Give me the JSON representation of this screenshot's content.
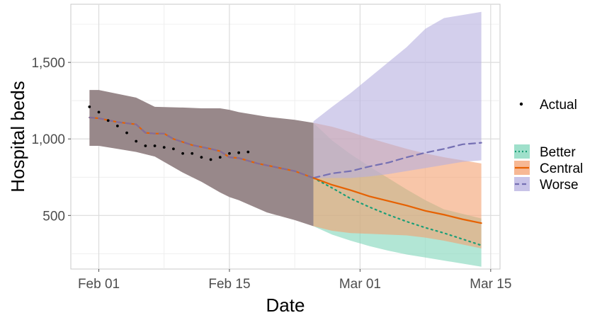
{
  "chart_data": {
    "type": "line",
    "xlabel": "Date",
    "ylabel": "Hospital beds",
    "xlim": [
      "2021-01-29",
      "2021-03-16"
    ],
    "ylim": [
      150,
      1880
    ],
    "x_ticks": [
      {
        "date": "2021-02-01",
        "label": "Feb 01"
      },
      {
        "date": "2021-02-15",
        "label": "Feb 15"
      },
      {
        "date": "2021-03-01",
        "label": "Mar 01"
      },
      {
        "date": "2021-03-15",
        "label": "Mar 15"
      }
    ],
    "y_ticks": [
      {
        "value": 500,
        "label": "500"
      },
      {
        "value": 1000,
        "label": "1,000"
      },
      {
        "value": 1500,
        "label": "1,500"
      }
    ],
    "grid": true,
    "legend_position": "right",
    "actual": {
      "name": "Actual",
      "color": "#000000",
      "x": [
        "2021-01-31",
        "2021-02-01",
        "2021-02-02",
        "2021-02-03",
        "2021-02-04",
        "2021-02-05",
        "2021-02-06",
        "2021-02-07",
        "2021-02-08",
        "2021-02-09",
        "2021-02-10",
        "2021-02-11",
        "2021-02-12",
        "2021-02-13",
        "2021-02-14",
        "2021-02-15",
        "2021-02-16",
        "2021-02-17"
      ],
      "y": [
        1210,
        1175,
        1120,
        1085,
        1040,
        985,
        955,
        955,
        945,
        935,
        905,
        905,
        880,
        865,
        880,
        905,
        910,
        915
      ]
    },
    "shared_band": {
      "x": [
        "2021-01-31",
        "2021-02-01",
        "2021-02-03",
        "2021-02-05",
        "2021-02-07",
        "2021-02-10",
        "2021-02-12",
        "2021-02-14",
        "2021-02-15",
        "2021-02-16",
        "2021-02-19",
        "2021-02-22",
        "2021-02-24"
      ],
      "lower": [
        955,
        955,
        935,
        915,
        885,
        780,
        720,
        650,
        620,
        600,
        520,
        470,
        430
      ],
      "upper": [
        1320,
        1320,
        1295,
        1270,
        1210,
        1205,
        1200,
        1200,
        1190,
        1175,
        1145,
        1125,
        1105
      ],
      "color": "#98888a"
    },
    "shared_line": {
      "x": [
        "2021-01-31",
        "2021-02-01",
        "2021-02-03",
        "2021-02-05",
        "2021-02-06",
        "2021-02-07",
        "2021-02-08",
        "2021-02-09",
        "2021-02-11",
        "2021-02-13",
        "2021-02-14",
        "2021-02-15",
        "2021-02-16",
        "2021-02-18",
        "2021-02-20",
        "2021-02-22",
        "2021-02-24"
      ],
      "y": [
        1140,
        1135,
        1110,
        1095,
        1040,
        1035,
        1035,
        1000,
        960,
        935,
        920,
        880,
        875,
        840,
        815,
        790,
        745
      ],
      "color": "#7f6e9e"
    },
    "series": [
      {
        "name": "Better",
        "color": "#1b9e77",
        "fill": "#7fd6b9",
        "dash": "dotted",
        "x": [
          "2021-02-24",
          "2021-02-26",
          "2021-02-28",
          "2021-03-02",
          "2021-03-04",
          "2021-03-06",
          "2021-03-08",
          "2021-03-10",
          "2021-03-12",
          "2021-03-14"
        ],
        "y": [
          745,
          680,
          610,
          555,
          505,
          460,
          420,
          385,
          345,
          305
        ],
        "lower": [
          430,
          375,
          335,
          300,
          270,
          245,
          225,
          205,
          185,
          165
        ],
        "upper": [
          1105,
          990,
          900,
          820,
          745,
          670,
          600,
          540,
          510,
          480
        ]
      },
      {
        "name": "Central",
        "color": "#e66101",
        "fill": "#f4a070",
        "dash": "solid",
        "x": [
          "2021-02-24",
          "2021-02-26",
          "2021-02-28",
          "2021-03-02",
          "2021-03-04",
          "2021-03-06",
          "2021-03-08",
          "2021-03-10",
          "2021-03-12",
          "2021-03-14"
        ],
        "y": [
          745,
          700,
          665,
          625,
          595,
          565,
          530,
          505,
          475,
          450
        ],
        "lower": [
          430,
          400,
          385,
          380,
          375,
          370,
          355,
          335,
          310,
          285
        ],
        "upper": [
          1105,
          1080,
          1045,
          1005,
          970,
          935,
          905,
          880,
          860,
          840
        ]
      },
      {
        "name": "Worse",
        "color": "#7570b3",
        "fill": "#b6afe0",
        "dash": "dashed",
        "x": [
          "2021-02-24",
          "2021-02-26",
          "2021-02-28",
          "2021-03-02",
          "2021-03-04",
          "2021-03-06",
          "2021-03-08",
          "2021-03-10",
          "2021-03-12",
          "2021-03-14"
        ],
        "y": [
          745,
          775,
          790,
          820,
          845,
          880,
          910,
          935,
          965,
          975
        ],
        "lower": [
          745,
          745,
          745,
          755,
          770,
          790,
          810,
          830,
          850,
          860
        ],
        "upper": [
          1115,
          1210,
          1300,
          1400,
          1500,
          1600,
          1720,
          1790,
          1810,
          1830
        ]
      }
    ]
  }
}
